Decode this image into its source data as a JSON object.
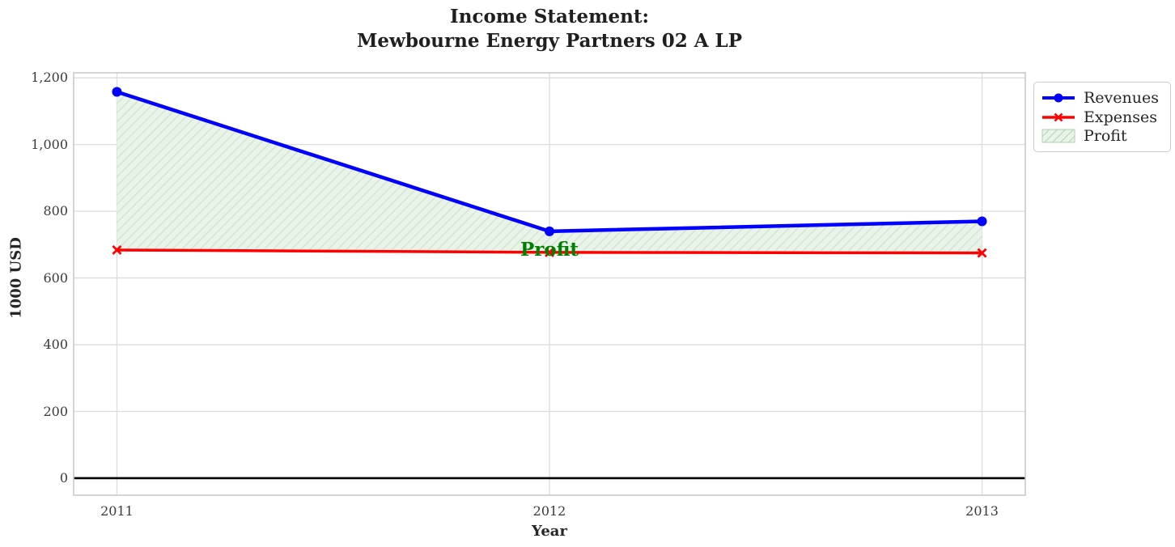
{
  "chart_data": {
    "type": "line",
    "title": "Income Statement:\nMewbourne Energy Partners 02 A LP",
    "xlabel": "Year",
    "ylabel": "1000 USD",
    "x": [
      2011,
      2012,
      2013
    ],
    "x_tick_labels": [
      "2011",
      "2012",
      "2013"
    ],
    "y_ticks": [
      0,
      200,
      400,
      600,
      800,
      1000,
      1200
    ],
    "y_tick_labels": [
      "0",
      "200",
      "400",
      "600",
      "800",
      "1,000",
      "1,200"
    ],
    "xlim": [
      2010.9,
      2013.1
    ],
    "ylim": [
      -51,
      1215
    ],
    "grid": true,
    "series": [
      {
        "name": "Revenues",
        "color": "#0000ff",
        "marker": "circle",
        "line_width": 4.5,
        "values": [
          1158,
          740,
          770
        ]
      },
      {
        "name": "Expenses",
        "color": "#ff0000",
        "marker": "x",
        "line_width": 3.5,
        "values": [
          684,
          677,
          675
        ]
      }
    ],
    "area": {
      "name": "Profit",
      "between": [
        "Revenues",
        "Expenses"
      ],
      "fill_color": "#eaf3ea",
      "hatch_color": "#cde4cd",
      "hatch": "///"
    },
    "annotation": {
      "text": "Profit",
      "x": 2012,
      "y": 700,
      "color": "#008000"
    },
    "zero_line": {
      "y": 0,
      "color": "#000000",
      "width": 2.6
    },
    "legend": {
      "position": "upper-right-outside",
      "items": [
        "Revenues",
        "Expenses",
        "Profit"
      ]
    },
    "grid_color": "#dcdcdc",
    "spine_color": "#c9c9c9"
  }
}
